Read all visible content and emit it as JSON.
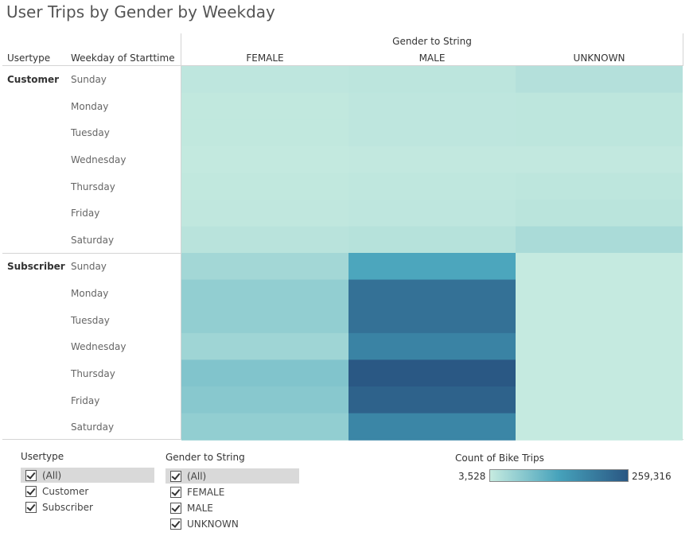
{
  "title": "User Trips by Gender by Weekday",
  "headers": {
    "column_group": "Gender to String",
    "usertype": "Usertype",
    "weekday": "Weekday of Starttime"
  },
  "chart_data": {
    "type": "heatmap",
    "title": "User Trips by Gender by Weekday",
    "x": [
      "FEMALE",
      "MALE",
      "UNKNOWN"
    ],
    "y_groups": [
      "Customer",
      "Subscriber"
    ],
    "y": [
      "Sunday",
      "Monday",
      "Tuesday",
      "Wednesday",
      "Thursday",
      "Friday",
      "Saturday"
    ],
    "color_scale": {
      "label": "Count of Bike Trips",
      "min": 3528,
      "max": 259316,
      "min_label": "3,528",
      "max_label": "259,316",
      "low_color": "#c6ebe0",
      "mid_color": "#46a2bb",
      "high_color": "#2a5783"
    },
    "values": {
      "Customer": [
        [
          12000,
          14000,
          22000
        ],
        [
          9000,
          12000,
          13000
        ],
        [
          9000,
          12000,
          13000
        ],
        [
          7000,
          8000,
          8000
        ],
        [
          9000,
          11000,
          13000
        ],
        [
          10000,
          12000,
          16000
        ],
        [
          17000,
          20000,
          32000
        ]
      ],
      "Subscriber": [
        [
          38000,
          125000,
          5000
        ],
        [
          55000,
          215000,
          5000
        ],
        [
          55000,
          215000,
          5000
        ],
        [
          42000,
          185000,
          5000
        ],
        [
          72000,
          258000,
          5000
        ],
        [
          65000,
          240000,
          5000
        ],
        [
          55000,
          180000,
          5000
        ]
      ]
    }
  },
  "filters": {
    "usertype": {
      "title": "Usertype",
      "items": [
        "(All)",
        "Customer",
        "Subscriber"
      ]
    },
    "gender": {
      "title": "Gender to String",
      "items": [
        "(All)",
        "FEMALE",
        "MALE",
        "UNKNOWN"
      ]
    }
  }
}
